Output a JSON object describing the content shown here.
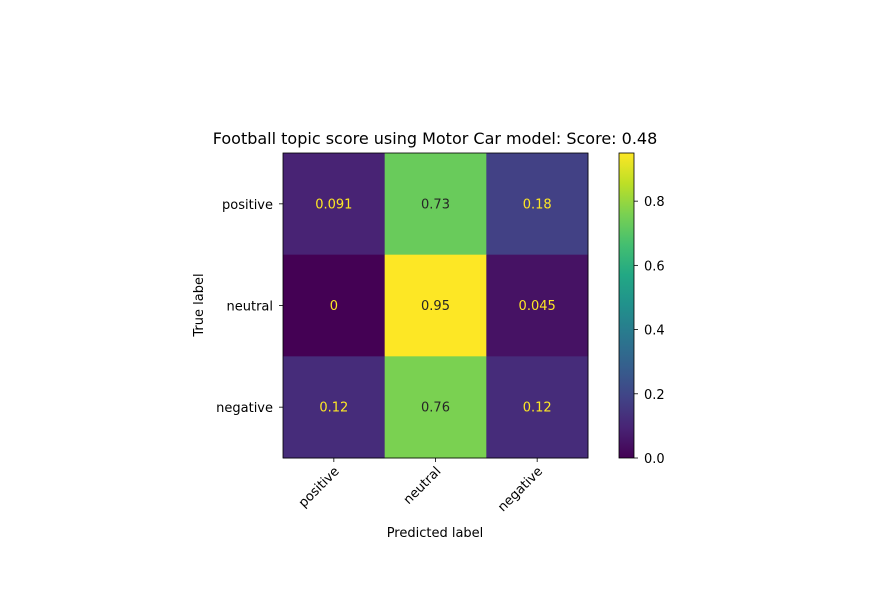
{
  "chart_data": {
    "type": "heatmap",
    "title": "Football topic score using Motor Car model: Score: 0.48",
    "xlabel": "Predicted label",
    "ylabel": "True label",
    "x_categories": [
      "positive",
      "neutral",
      "negative"
    ],
    "y_categories": [
      "positive",
      "neutral",
      "negative"
    ],
    "values": [
      [
        0.091,
        0.73,
        0.18
      ],
      [
        0,
        0.95,
        0.045
      ],
      [
        0.12,
        0.76,
        0.12
      ]
    ],
    "cell_labels": [
      [
        "0.091",
        "0.73",
        "0.18"
      ],
      [
        "0",
        "0.95",
        "0.045"
      ],
      [
        "0.12",
        "0.76",
        "0.12"
      ]
    ],
    "colormap": "viridis",
    "colorbar": {
      "range": [
        0,
        0.95
      ],
      "ticks": [
        0.0,
        0.2,
        0.4,
        0.6,
        0.8
      ],
      "tick_labels": [
        "0.0",
        "0.2",
        "0.4",
        "0.6",
        "0.8"
      ]
    },
    "text_colors": {
      "on_dark": "#fde725",
      "on_light": "#262626"
    },
    "grid": false
  }
}
